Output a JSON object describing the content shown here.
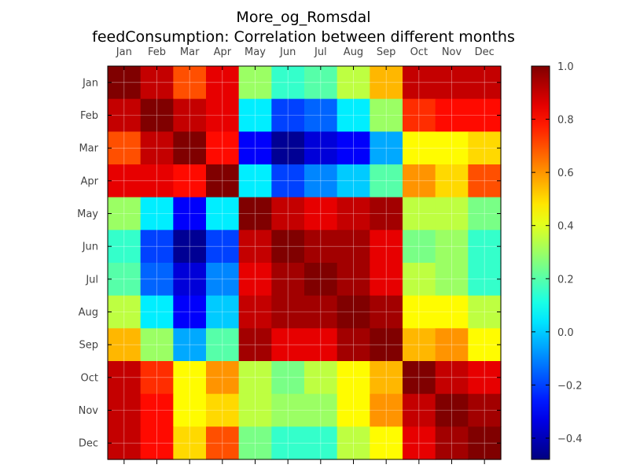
{
  "chart_data": {
    "type": "heatmap",
    "title": "More_og_Romsdal",
    "subtitle": "feedConsumption: Correlation between different months",
    "x_categories": [
      "Jan",
      "Feb",
      "Mar",
      "Apr",
      "May",
      "Jun",
      "Jul",
      "Aug",
      "Sep",
      "Oct",
      "Nov",
      "Dec"
    ],
    "y_categories": [
      "Jan",
      "Feb",
      "Mar",
      "Apr",
      "May",
      "Jun",
      "Jul",
      "Aug",
      "Sep",
      "Oct",
      "Nov",
      "Dec"
    ],
    "x_axis_position": "top",
    "colorbar": {
      "position": "right",
      "vmin": -0.48,
      "vmax": 1.0,
      "ticks": [
        1.0,
        0.8,
        0.6,
        0.4,
        0.2,
        0.0,
        -0.2,
        -0.4
      ],
      "tick_labels": [
        "1.0",
        "0.8",
        "0.6",
        "0.4",
        "0.2",
        "0.0",
        "−0.2",
        "−0.4"
      ],
      "colormap": "jet"
    },
    "grid": true,
    "values": [
      [
        1.0,
        0.9,
        0.7,
        0.85,
        0.3,
        0.15,
        0.2,
        0.35,
        0.55,
        0.9,
        0.9,
        0.9
      ],
      [
        0.9,
        1.0,
        0.9,
        0.85,
        0.05,
        -0.2,
        -0.15,
        0.05,
        0.3,
        0.75,
        0.8,
        0.8
      ],
      [
        0.7,
        0.9,
        1.0,
        0.8,
        -0.3,
        -0.45,
        -0.35,
        -0.3,
        -0.05,
        0.45,
        0.45,
        0.5
      ],
      [
        0.85,
        0.85,
        0.8,
        1.0,
        0.05,
        -0.2,
        -0.1,
        0.0,
        0.2,
        0.6,
        0.5,
        0.7
      ],
      [
        0.3,
        0.05,
        -0.3,
        0.05,
        1.0,
        0.9,
        0.85,
        0.9,
        0.95,
        0.35,
        0.35,
        0.25
      ],
      [
        0.15,
        -0.2,
        -0.45,
        -0.2,
        0.9,
        1.0,
        0.95,
        0.95,
        0.85,
        0.25,
        0.3,
        0.15
      ],
      [
        0.2,
        -0.15,
        -0.35,
        -0.1,
        0.85,
        0.95,
        1.0,
        0.95,
        0.85,
        0.35,
        0.3,
        0.15
      ],
      [
        0.35,
        0.05,
        -0.3,
        0.0,
        0.9,
        0.95,
        0.95,
        1.0,
        0.95,
        0.45,
        0.45,
        0.35
      ],
      [
        0.55,
        0.3,
        -0.05,
        0.2,
        0.95,
        0.85,
        0.85,
        0.95,
        1.0,
        0.55,
        0.6,
        0.45
      ],
      [
        0.9,
        0.75,
        0.45,
        0.6,
        0.35,
        0.25,
        0.35,
        0.45,
        0.55,
        1.0,
        0.9,
        0.85
      ],
      [
        0.9,
        0.8,
        0.45,
        0.5,
        0.35,
        0.3,
        0.3,
        0.45,
        0.6,
        0.9,
        1.0,
        0.95
      ],
      [
        0.9,
        0.8,
        0.5,
        0.7,
        0.25,
        0.15,
        0.15,
        0.35,
        0.45,
        0.85,
        0.95,
        1.0
      ]
    ]
  }
}
